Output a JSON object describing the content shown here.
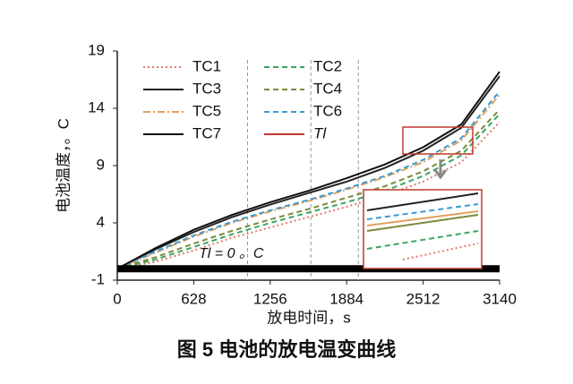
{
  "chart_data": {
    "type": "line",
    "title": "图 5  电池的放电温变曲线",
    "x_label": "放电时间，s",
    "y_label": "电池温度，。C",
    "annotation": "Tl = 0 。C",
    "x": [
      0,
      314,
      628,
      942,
      1256,
      1570,
      1884,
      2198,
      2512,
      2826,
      3140
    ],
    "series": [
      {
        "name": "TC1",
        "color": "#e07b6a",
        "dash": "2,3",
        "values": [
          0,
          0.6,
          1.6,
          2.7,
          3.6,
          4.5,
          5.4,
          6.4,
          7.6,
          9.3,
          12.8
        ]
      },
      {
        "name": "TC2",
        "color": "#3aa660",
        "dash": "6,4",
        "values": [
          0,
          0.8,
          1.9,
          3.0,
          4.0,
          4.9,
          5.8,
          6.8,
          8.1,
          9.9,
          13.5
        ]
      },
      {
        "name": "TC3",
        "color": "#222222",
        "dash": "",
        "values": [
          0,
          1.7,
          3.2,
          4.5,
          5.6,
          6.6,
          7.6,
          8.8,
          10.3,
          12.3,
          16.8
        ]
      },
      {
        "name": "TC4",
        "color": "#7a8a3a",
        "dash": "6,4",
        "values": [
          0,
          1.0,
          2.2,
          3.3,
          4.3,
          5.2,
          6.2,
          7.2,
          8.5,
          10.3,
          13.9
        ]
      },
      {
        "name": "TC5",
        "color": "#e0a060",
        "dash": "8,3,2,3",
        "values": [
          0,
          1.4,
          2.8,
          4.0,
          5.0,
          5.9,
          6.9,
          8.0,
          9.3,
          11.2,
          15.2
        ]
      },
      {
        "name": "TC6",
        "color": "#3a9ad0",
        "dash": "6,4",
        "values": [
          0,
          1.5,
          2.9,
          4.1,
          5.1,
          6.0,
          7.0,
          8.1,
          9.5,
          11.4,
          15.5
        ]
      },
      {
        "name": "TC7",
        "color": "#111111",
        "dash": "",
        "values": [
          0,
          1.8,
          3.4,
          4.7,
          5.8,
          6.8,
          7.9,
          9.1,
          10.6,
          12.6,
          17.2
        ]
      },
      {
        "name": "Tl",
        "color": "#c0392b",
        "dash": "",
        "values": [
          0,
          0,
          0,
          0,
          0,
          0,
          0,
          0,
          0,
          0,
          0
        ]
      }
    ],
    "reference_lines": [
      1070,
      1590,
      1980
    ],
    "xlim": [
      0,
      3140
    ],
    "xticks": [
      0,
      628,
      1256,
      1884,
      2512,
      3140
    ],
    "ylim": [
      -1,
      19
    ],
    "yticks": [
      -1,
      4,
      9,
      14,
      19
    ]
  }
}
